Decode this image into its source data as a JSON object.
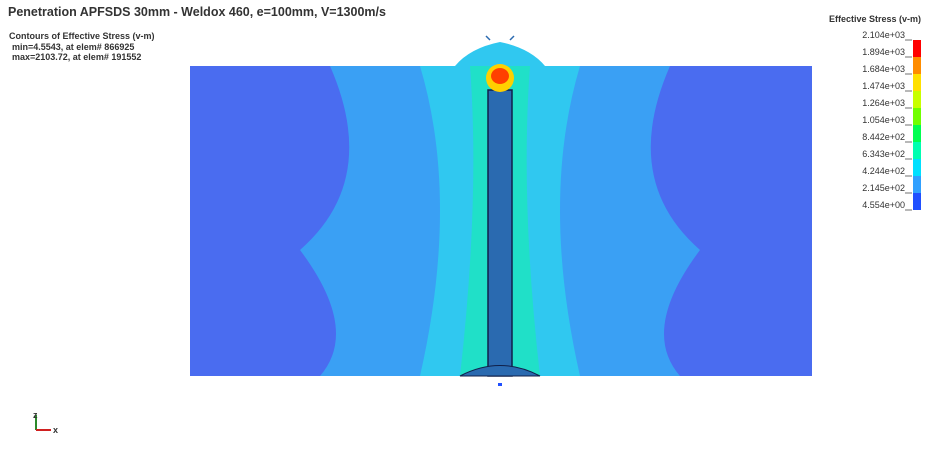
{
  "header": {
    "title": "Penetration APFSDS 30mm - Weldox 460, e=100mm, V=1300m/s"
  },
  "contour_info": {
    "heading": "Contours of Effective Stress (v-m)",
    "min": "min=4.5543, at elem# 866925",
    "max": "max=2103.72, at elem# 191552"
  },
  "legend": {
    "title": "Effective Stress (v-m)",
    "labels": [
      "2.104e+03",
      "1.894e+03",
      "1.684e+03",
      "1.474e+03",
      "1.264e+03",
      "1.054e+03",
      "8.442e+02",
      "6.343e+02",
      "4.244e+02",
      "2.145e+02",
      "4.554e+00"
    ],
    "colors": [
      "#ff0000",
      "#ff8c00",
      "#ffe000",
      "#c8ff00",
      "#70ff00",
      "#00ff50",
      "#00ffb0",
      "#00e0ff",
      "#30a0ff",
      "#2050ff",
      "#0000e0"
    ]
  },
  "axes": {
    "z": "z",
    "x": "x"
  }
}
